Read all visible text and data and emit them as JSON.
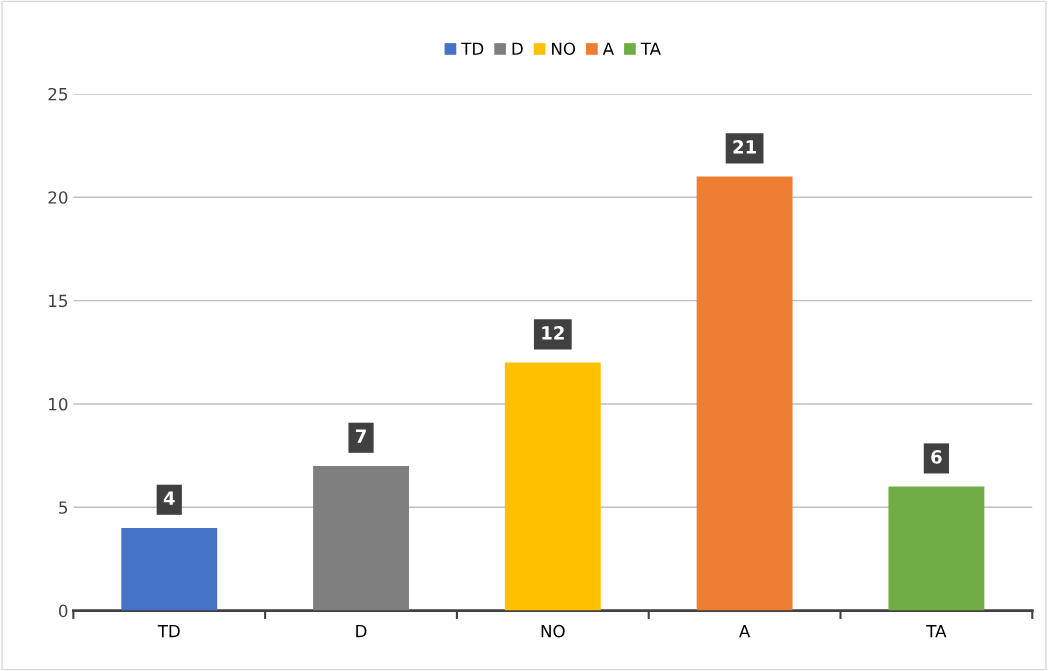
{
  "chart_data": {
    "type": "bar",
    "categories": [
      "TD",
      "D",
      "NO",
      "A",
      "TA"
    ],
    "series": [
      {
        "name": "TD",
        "color": "#4472c4",
        "values": [
          4,
          null,
          null,
          null,
          null
        ]
      },
      {
        "name": "D",
        "color": "#7f7f7f",
        "values": [
          null,
          7,
          null,
          null,
          null
        ]
      },
      {
        "name": "NO",
        "color": "#ffc000",
        "values": [
          null,
          null,
          12,
          null,
          null
        ]
      },
      {
        "name": "A",
        "color": "#ed7d31",
        "values": [
          null,
          null,
          null,
          21,
          null
        ]
      },
      {
        "name": "TA",
        "color": "#70ad47",
        "values": [
          null,
          null,
          null,
          null,
          6
        ]
      }
    ],
    "ylim": [
      0,
      25
    ],
    "yticks": [
      0,
      5,
      10,
      15,
      20,
      25
    ],
    "grid": "y",
    "legend": "top",
    "data_labels": true
  }
}
